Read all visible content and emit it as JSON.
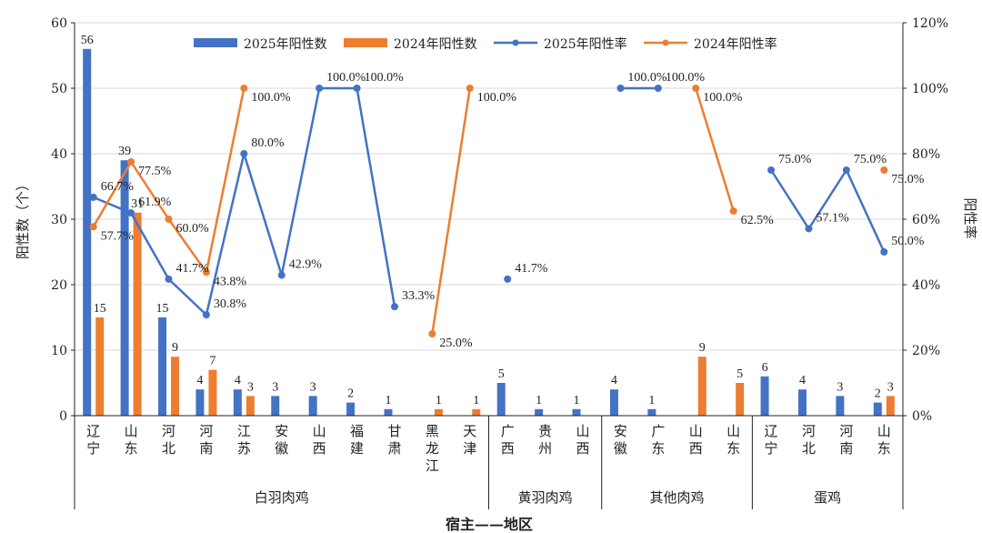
{
  "chart_data": {
    "type": "bar+line",
    "xlabel": "宿主——地区",
    "ylabel": "阳性数（个）",
    "ylabel_right": "阳性率",
    "ylim": [
      0,
      60
    ],
    "ylim_right": [
      0,
      120
    ],
    "yticks": [
      "0",
      "10",
      "20",
      "30",
      "40",
      "50",
      "60"
    ],
    "yticks_right": [
      "0%",
      "20%",
      "40%",
      "60%",
      "80%",
      "100%",
      "120%"
    ],
    "legend_position": "top",
    "legend": [
      "2025年阳性数",
      "2024年阳性数",
      "2025年阳性率",
      "2024年阳性率"
    ],
    "colors": {
      "s2025": "#4472C4",
      "s2024": "#ED7D31"
    },
    "grid": true,
    "categories": [
      {
        "name": "辽宁",
        "group": "白羽肉鸡"
      },
      {
        "name": "山东",
        "group": "白羽肉鸡"
      },
      {
        "name": "河北",
        "group": "白羽肉鸡"
      },
      {
        "name": "河南",
        "group": "白羽肉鸡"
      },
      {
        "name": "江苏",
        "group": "白羽肉鸡"
      },
      {
        "name": "安徽",
        "group": "白羽肉鸡"
      },
      {
        "name": "山西",
        "group": "白羽肉鸡"
      },
      {
        "name": "福建",
        "group": "白羽肉鸡"
      },
      {
        "name": "甘肃",
        "group": "白羽肉鸡"
      },
      {
        "name": "黑龙江",
        "group": "白羽肉鸡"
      },
      {
        "name": "天津",
        "group": "白羽肉鸡"
      },
      {
        "name": "广西",
        "group": "黄羽肉鸡"
      },
      {
        "name": "贵州",
        "group": "黄羽肉鸡"
      },
      {
        "name": "山西",
        "group": "黄羽肉鸡"
      },
      {
        "name": "安徽",
        "group": "其他肉鸡"
      },
      {
        "name": "广东",
        "group": "其他肉鸡"
      },
      {
        "name": "山西",
        "group": "其他肉鸡"
      },
      {
        "name": "山东",
        "group": "其他肉鸡"
      },
      {
        "name": "辽宁",
        "group": "蛋鸡"
      },
      {
        "name": "河北",
        "group": "蛋鸡"
      },
      {
        "name": "河南",
        "group": "蛋鸡"
      },
      {
        "name": "山东",
        "group": "蛋鸡"
      }
    ],
    "groups": [
      "白羽肉鸡",
      "黄羽肉鸡",
      "其他肉鸡",
      "蛋鸡"
    ],
    "series": [
      {
        "name": "2025年阳性数",
        "type": "bar",
        "axis": "left",
        "values": [
          56,
          39,
          15,
          4,
          4,
          3,
          3,
          2,
          1,
          null,
          null,
          5,
          1,
          1,
          4,
          1,
          null,
          null,
          6,
          4,
          3,
          2
        ]
      },
      {
        "name": "2024年阳性数",
        "type": "bar",
        "axis": "left",
        "values": [
          15,
          31,
          9,
          7,
          3,
          null,
          null,
          null,
          null,
          1,
          1,
          null,
          null,
          null,
          null,
          null,
          9,
          5,
          null,
          null,
          null,
          3
        ]
      },
      {
        "name": "2025年阳性率",
        "type": "line",
        "axis": "right",
        "unit": "%",
        "values": [
          66.7,
          61.9,
          41.7,
          30.8,
          80.0,
          42.9,
          100.0,
          100.0,
          33.3,
          null,
          null,
          41.7,
          null,
          null,
          100.0,
          100.0,
          null,
          null,
          75.0,
          57.1,
          75.0,
          50.0
        ],
        "labels": [
          "66.7%",
          "61.9%",
          "41.7%",
          "30.8%",
          "80.0%",
          "42.9%",
          "100.0%",
          "100.0%",
          "33.3%",
          null,
          null,
          "41.7%",
          null,
          null,
          "100.0%",
          "100.0%",
          null,
          null,
          "75.0%",
          "57.1%",
          "75.0%",
          "50.0%"
        ]
      },
      {
        "name": "2024年阳性率",
        "type": "line",
        "axis": "right",
        "unit": "%",
        "values": [
          57.7,
          77.5,
          60.0,
          43.8,
          100.0,
          null,
          null,
          null,
          null,
          25.0,
          100.0,
          null,
          null,
          null,
          null,
          null,
          100.0,
          62.5,
          null,
          null,
          null,
          75.0
        ],
        "labels": [
          "57.7%",
          "77.5%",
          "60.0%",
          "43.8%",
          "100.0%",
          null,
          null,
          null,
          null,
          "25.0%",
          "100.0%",
          null,
          null,
          null,
          null,
          null,
          "100.0%",
          "62.5%",
          null,
          null,
          null,
          "75.0%"
        ]
      }
    ]
  }
}
